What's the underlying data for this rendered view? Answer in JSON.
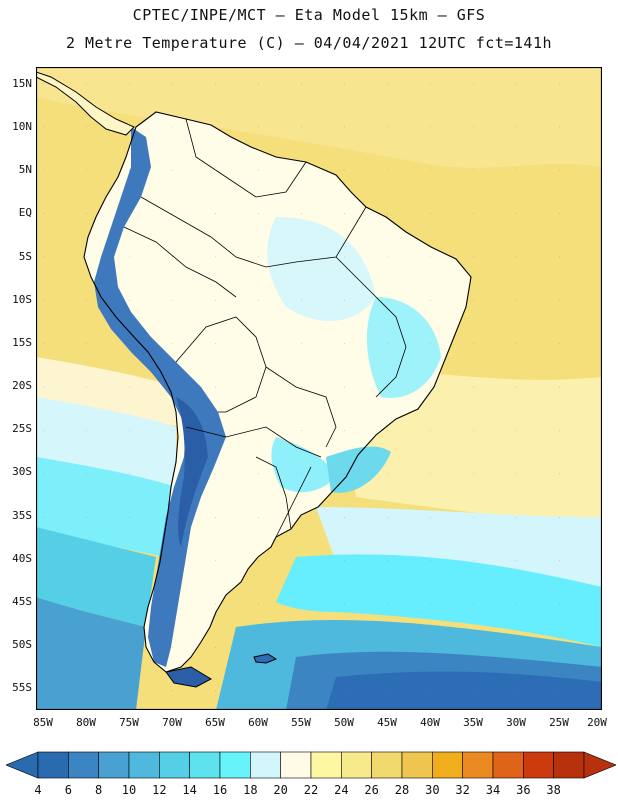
{
  "header": {
    "line1": "CPTEC/INPE/MCT –  Eta Model 15km – GFS",
    "line2": "2 Metre Temperature (C) – 04/04/2021 12UTC fct=141h"
  },
  "map": {
    "lat_labels": [
      "15N",
      "10N",
      "5N",
      "EQ",
      "5S",
      "10S",
      "15S",
      "20S",
      "25S",
      "30S",
      "35S",
      "40S",
      "45S",
      "50S",
      "55S"
    ],
    "lon_labels": [
      "85W",
      "80W",
      "75W",
      "70W",
      "65W",
      "60W",
      "55W",
      "50W",
      "45W",
      "40W",
      "35W",
      "30W",
      "25W",
      "20W"
    ],
    "colors": {
      "ocean_warm": "#f4df7a",
      "ocean_mild": "#fdfbd2",
      "ocean_cool": "#66eeff",
      "ocean_cold": "#2d6db5",
      "land_mild": "#fffce8",
      "andes": "#3e78bd",
      "coast": "#000000"
    }
  },
  "colorbar": {
    "labels": [
      "4",
      "6",
      "8",
      "10",
      "12",
      "14",
      "16",
      "18",
      "20",
      "22",
      "24",
      "26",
      "28",
      "30",
      "32",
      "34",
      "36",
      "38"
    ],
    "colors": [
      "#2a6bb0",
      "#3b86c2",
      "#48a1d0",
      "#4fb8dd",
      "#55cfe6",
      "#5ee2ee",
      "#66f4fa",
      "#d2f6fb",
      "#fffbe6",
      "#fdf7a4",
      "#f7ea8a",
      "#f2d96d",
      "#eec54f",
      "#f0ae1c",
      "#eb8a20",
      "#e0631a",
      "#cc3b0e",
      "#b8310d"
    ]
  }
}
